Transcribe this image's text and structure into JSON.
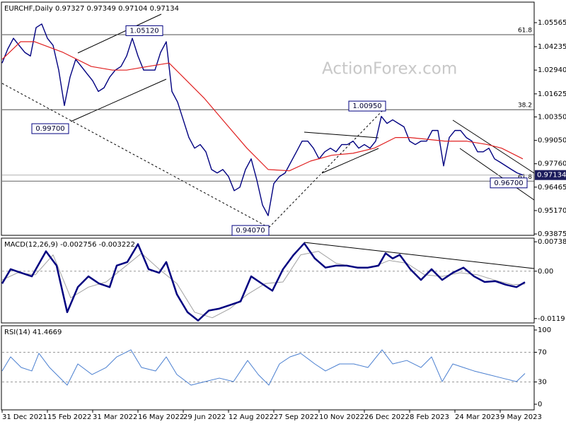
{
  "chart_data": [
    {
      "type": "line",
      "title": "EURCHF,Daily 0.97327 0.97349 0.97104 0.97134",
      "watermark": "ActionForex.com",
      "ylim": [
        0.938,
        1.067
      ],
      "yticks": [
        1.05565,
        1.04235,
        {
          "value": 1.0294,
          "label": "1.02940"
        },
        1.01625,
        {
          "value": 1.0035,
          "label": "1.00350"
        },
        {
          "value": 0.9905,
          "label": "0.99050"
        },
        {
          "value": 0.9776,
          "label": "0.97760"
        },
        0.96465,
        {
          "value": 0.9517,
          "label": "0.95170"
        },
        0.93875
      ],
      "series": [
        {
          "color": "#000080",
          "width": 1.4,
          "x": [
            0,
            4,
            8,
            12,
            16,
            20,
            24,
            28,
            32,
            36,
            40,
            44,
            48,
            52,
            56,
            60,
            64,
            68,
            72,
            76,
            80,
            84,
            88,
            92,
            96,
            100,
            104,
            108,
            112,
            116,
            120,
            124,
            128,
            132,
            136,
            140,
            144,
            148,
            152,
            156,
            160,
            164,
            168,
            172,
            176,
            180,
            184,
            188,
            192,
            196,
            200,
            204,
            208,
            212,
            216,
            220,
            224,
            228,
            232,
            236,
            240,
            244,
            248,
            252,
            256,
            260,
            264,
            268,
            272,
            276,
            280,
            284,
            288,
            292,
            296,
            300,
            304,
            308,
            312,
            316,
            320,
            324,
            328,
            332,
            336,
            340,
            344,
            348,
            352,
            356,
            360,
            364,
            368
          ],
          "values": [
            1.0333,
            1.0411,
            1.047,
            1.0431,
            1.0392,
            1.0372,
            1.0529,
            1.0549,
            1.047,
            1.0431,
            1.0294,
            1.0098,
            1.0255,
            1.0353,
            1.0314,
            1.0274,
            1.0235,
            1.0176,
            1.0196,
            1.0255,
            1.0294,
            1.0314,
            1.0372,
            1.047,
            1.0372,
            1.0294,
            1.0294,
            1.0294,
            1.0392,
            1.0451,
            1.0176,
            1.0117,
            1.0019,
            0.9921,
            0.9862,
            0.9882,
            0.9842,
            0.9744,
            0.9725,
            0.9744,
            0.9705,
            0.9627,
            0.9646,
            0.9744,
            0.9803,
            0.9686,
            0.9548,
            0.9489,
            0.9666,
            0.9705,
            0.9725,
            0.9784,
            0.9842,
            0.9901,
            0.9901,
            0.9862,
            0.9803,
            0.9842,
            0.9862,
            0.9842,
            0.9882,
            0.9882,
            0.9901,
            0.9862,
            0.9882,
            0.9862,
            0.9901,
            1.0038,
            0.9999,
            1.0019,
            0.9999,
            0.998,
            0.9901,
            0.9882,
            0.9901,
            0.9901,
            0.996,
            0.996,
            0.9764,
            0.9921,
            0.996,
            0.996,
            0.9921,
            0.9901,
            0.9842,
            0.9842,
            0.9862,
            0.9803,
            0.9784,
            0.9764,
            0.9744,
            0.9725,
            0.97134
          ]
        },
        {
          "color": "#e02020",
          "width": 1.2,
          "x": [
            0,
            13,
            23,
            43,
            63,
            78,
            88,
            103,
            118,
            128,
            143,
            158,
            173,
            188,
            203,
            218,
            233,
            248,
            263,
            278,
            288,
            298,
            313,
            328,
            343,
            353,
            368
          ],
          "values": [
            1.0353,
            1.0451,
            1.0451,
            1.0392,
            1.0314,
            1.0294,
            1.0294,
            1.0314,
            1.0333,
            1.0255,
            1.0137,
            0.9999,
            0.9862,
            0.9744,
            0.9737,
            0.9791,
            0.9823,
            0.9834,
            0.9862,
            0.9921,
            0.9921,
            0.9913,
            0.9901,
            0.9901,
            0.9882,
            0.9862,
            0.9803
          ]
        }
      ],
      "fib_levels": [
        {
          "value": 1.049,
          "label": "61.8"
        },
        {
          "value": 1.0075,
          "label": "38.2"
        },
        {
          "value": 0.968,
          "label": "61.8"
        }
      ],
      "annotations": [
        {
          "value": 1.0512,
          "label": "1.05120"
        },
        {
          "value": 0.997,
          "label": "0.99700"
        },
        {
          "value": 1.0095,
          "label": "1.00950"
        },
        {
          "value": 0.9407,
          "label": "0.94070"
        },
        {
          "value": 0.967,
          "label": "0.96700"
        }
      ],
      "last_price": 0.97134
    },
    {
      "type": "line",
      "title": "MACD(12,26,9) -0.002756 -0.003222",
      "grid": "inner",
      "ylim": [
        -0.013,
        0.0083
      ],
      "yticks": [
        0.007384,
        {
          "value": 0,
          "label": "0.00"
        },
        -0.0119
      ],
      "series": [
        {
          "color": "#a0a0a0",
          "width": 1,
          "x": [
            0,
            11,
            23.5,
            36,
            48.5,
            61,
            73.5,
            86,
            98.5,
            111,
            123.5,
            136,
            148.5,
            161,
            173.5,
            186,
            198.5,
            211,
            223.5,
            236,
            248.5,
            261,
            273.5,
            286,
            298.5,
            311,
            323.5,
            336,
            348.5,
            361,
            369.5
          ],
          "values": [
            -0.0022,
            -0.0004,
            -0.0009,
            0.0041,
            -0.0067,
            -0.004,
            -0.0027,
            0.0009,
            0.0045,
            0.0005,
            -0.0031,
            -0.0103,
            -0.0117,
            -0.0094,
            -0.0058,
            -0.0031,
            -0.0027,
            0.0041,
            0.005,
            0.002,
            0.0011,
            0.0009,
            0.0027,
            0.002,
            -0.0009,
            -0.0013,
            -0.0004,
            -0.0009,
            -0.0023,
            -0.0034,
            -0.003222
          ]
        },
        {
          "color": "#000080",
          "width": 2.5,
          "x": [
            0,
            6,
            13.5,
            21,
            31,
            38.5,
            46,
            53.5,
            61,
            68.5,
            76,
            81,
            88.5,
            96,
            103.5,
            111,
            116,
            123.5,
            131,
            138.5,
            146,
            153.5,
            161,
            168.5,
            176,
            183.5,
            191,
            198.5,
            206,
            213.5,
            221,
            228.5,
            236,
            243.5,
            251,
            258.5,
            266,
            271,
            276,
            281,
            288.5,
            296,
            303.5,
            311,
            318.5,
            326,
            333.5,
            341,
            348.5,
            356,
            363.5,
            369.5
          ],
          "values": [
            -0.0031,
            0.0005,
            -0.0004,
            -0.0013,
            0.005,
            0.0014,
            -0.0103,
            -0.004,
            -0.0013,
            -0.0031,
            -0.004,
            0.0014,
            0.0023,
            0.0068,
            0.0005,
            -0.0004,
            0.0023,
            -0.0058,
            -0.0103,
            -0.0124,
            -0.0099,
            -0.0094,
            -0.0085,
            -0.0076,
            -0.0013,
            -0.0031,
            -0.0049,
            0.0005,
            0.0041,
            0.007,
            0.0032,
            0.0009,
            0.0014,
            0.0014,
            0.0009,
            0.0009,
            0.0014,
            0.0045,
            0.0032,
            0.0041,
            0.0005,
            -0.0022,
            0.0005,
            -0.0022,
            -0.0004,
            0.0009,
            -0.0013,
            -0.0027,
            -0.0025,
            -0.0034,
            -0.004,
            -0.002756
          ]
        }
      ]
    },
    {
      "type": "line",
      "title": "RSI(14) 41.4669",
      "grid": "inner",
      "ylim": [
        -7.6,
        105.7
      ],
      "yticks": [
        100,
        70,
        30,
        0
      ],
      "xlim": [
        0,
        376
      ],
      "xticks": [
        {
          "value": 0,
          "label": "31 Dec 2021"
        },
        {
          "value": 32,
          "label": "15 Feb 2022"
        },
        {
          "value": 64,
          "label": "31 Mar 2022"
        },
        {
          "value": 96,
          "label": "16 May 2022"
        },
        {
          "value": 128,
          "label": "29 Jun 2022"
        },
        {
          "value": 160,
          "label": "12 Aug 2022"
        },
        {
          "value": 192,
          "label": "27 Sep 2022"
        },
        {
          "value": 224,
          "label": "10 Nov 2022"
        },
        {
          "value": 256,
          "label": "26 Dec 2022"
        },
        {
          "value": 288,
          "label": "8 Feb 2023"
        },
        {
          "value": 320,
          "label": "24 Mar 2023"
        },
        {
          "value": 352,
          "label": "9 May 2023"
        }
      ],
      "series": [
        {
          "color": "#4a7fd0",
          "width": 1,
          "x": [
            0,
            6,
            13.5,
            21,
            26,
            33.5,
            46,
            53.5,
            63.5,
            73.5,
            81,
            91,
            98.5,
            108.5,
            116,
            123.5,
            133.5,
            143.5,
            153.5,
            163.5,
            173.5,
            181,
            188.5,
            196,
            203.5,
            211,
            221,
            228.5,
            238.5,
            248.5,
            258.5,
            268.5,
            276,
            286,
            296,
            303.5,
            311,
            318.5,
            326,
            333.5,
            343.5,
            353.5,
            363.5,
            369.5
          ],
          "values": [
            44.8,
            63.8,
            49.5,
            44.8,
            68.6,
            49.5,
            25.7,
            54.3,
            40,
            49.5,
            63.8,
            73.3,
            49.5,
            44.8,
            63.8,
            40,
            25.7,
            30.5,
            35.2,
            30.5,
            59,
            40,
            25.7,
            54.3,
            63.8,
            68.6,
            54.3,
            44.8,
            54.3,
            54.3,
            49.5,
            73.3,
            54.3,
            59,
            49.5,
            63.8,
            30.5,
            54.3,
            49.5,
            44.8,
            40,
            35.2,
            30.5,
            41.4669
          ]
        }
      ]
    }
  ]
}
